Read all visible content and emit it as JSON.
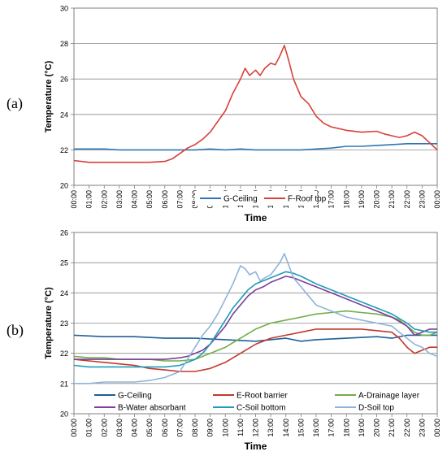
{
  "chart_data": [
    {
      "panel_label": "(a)",
      "type": "line",
      "xlabel": "Time",
      "ylabel": "Temperature (°C)",
      "ylim": [
        20,
        30
      ],
      "yticks": [
        20,
        22,
        24,
        26,
        28,
        30
      ],
      "xticks": [
        "00:00",
        "01:00",
        "02:00",
        "03:00",
        "04:00",
        "05:00",
        "06:00",
        "07:00",
        "08:00",
        "09:00",
        "10:00",
        "11:00",
        "12:00",
        "13:00",
        "14:00",
        "15:00",
        "16:00",
        "17:00",
        "18:00",
        "19:00",
        "20:00",
        "21:00",
        "22:00",
        "23:00",
        "00:00"
      ],
      "xlim": [
        0,
        24
      ],
      "grid": "horizontal",
      "legend_placement": "bottom-center",
      "series": [
        {
          "name": "G-Ceiling",
          "color": "#2e75b6",
          "x": [
            0,
            1,
            2,
            3,
            4,
            5,
            6,
            7,
            8,
            9,
            10,
            11,
            12,
            13,
            14,
            15,
            16,
            17,
            18,
            19,
            20,
            21,
            22,
            23,
            24
          ],
          "y": [
            22.05,
            22.05,
            22.05,
            22.0,
            22.0,
            22.0,
            22.0,
            22.0,
            22.0,
            22.05,
            22.0,
            22.05,
            22.0,
            22.0,
            22.0,
            22.0,
            22.05,
            22.1,
            22.2,
            22.2,
            22.25,
            22.3,
            22.35,
            22.35,
            22.35
          ]
        },
        {
          "name": "F-Roof top",
          "color": "#d9403b",
          "x": [
            0,
            1,
            2,
            3,
            4,
            5,
            6,
            6.5,
            7,
            7.5,
            8,
            8.5,
            9,
            9.5,
            10,
            10.5,
            11,
            11.3,
            11.6,
            12,
            12.3,
            12.6,
            13,
            13.3,
            13.6,
            13.9,
            14.2,
            14.5,
            15,
            15.5,
            16,
            16.5,
            17,
            17.5,
            18,
            19,
            20,
            20.5,
            21,
            21.5,
            22,
            22.5,
            23,
            23.5,
            24
          ],
          "y": [
            21.4,
            21.3,
            21.3,
            21.3,
            21.3,
            21.3,
            21.35,
            21.5,
            21.8,
            22.1,
            22.3,
            22.6,
            23.0,
            23.6,
            24.2,
            25.2,
            26.0,
            26.6,
            26.2,
            26.5,
            26.2,
            26.6,
            26.9,
            26.8,
            27.3,
            27.9,
            27.0,
            26.0,
            25.0,
            24.6,
            23.9,
            23.5,
            23.3,
            23.2,
            23.1,
            23.0,
            23.05,
            22.9,
            22.8,
            22.7,
            22.8,
            23.0,
            22.8,
            22.4,
            22.0
          ]
        }
      ]
    },
    {
      "panel_label": "(b)",
      "type": "line",
      "xlabel": "Time",
      "ylabel": "Temperature (°C)",
      "ylim": [
        20,
        26
      ],
      "yticks": [
        20,
        21,
        22,
        23,
        24,
        25,
        26
      ],
      "xticks": [
        "00:00",
        "01:00",
        "02:00",
        "03:00",
        "04:00",
        "05:00",
        "06:00",
        "07:00",
        "08:00",
        "09:00",
        "10:00",
        "11:00",
        "12:00",
        "13:00",
        "14:00",
        "15:00",
        "16:00",
        "17:00",
        "18:00",
        "19:00",
        "20:00",
        "21:00",
        "22:00",
        "23:00",
        "00:00"
      ],
      "xlim": [
        0,
        24
      ],
      "grid": "horizontal",
      "legend_placement": "bottom",
      "series": [
        {
          "name": "G-Ceiling",
          "color": "#1f5f99",
          "x": [
            0,
            2,
            4,
            6,
            8,
            10,
            12,
            13,
            14,
            15,
            16,
            18,
            20,
            21,
            22,
            23,
            24
          ],
          "y": [
            22.6,
            22.55,
            22.55,
            22.5,
            22.5,
            22.45,
            22.4,
            22.45,
            22.5,
            22.4,
            22.45,
            22.5,
            22.55,
            22.5,
            22.6,
            22.6,
            22.6
          ]
        },
        {
          "name": "E-Root barrier",
          "color": "#c0392b",
          "x": [
            0,
            1,
            2,
            3,
            4,
            5,
            6,
            7,
            8,
            9,
            10,
            11,
            12,
            13,
            14,
            15,
            16,
            17,
            18,
            19,
            20,
            21,
            21.5,
            22,
            22.5,
            23,
            23.5,
            24
          ],
          "y": [
            21.8,
            21.75,
            21.7,
            21.65,
            21.6,
            21.5,
            21.45,
            21.4,
            21.4,
            21.5,
            21.7,
            22.0,
            22.3,
            22.5,
            22.6,
            22.7,
            22.8,
            22.8,
            22.8,
            22.8,
            22.75,
            22.7,
            22.5,
            22.2,
            22.0,
            22.1,
            22.2,
            22.2
          ]
        },
        {
          "name": "A-Drainage layer",
          "color": "#70ad47",
          "x": [
            0,
            1,
            2,
            3,
            4,
            5,
            6,
            7,
            8,
            9,
            10,
            11,
            12,
            13,
            14,
            15,
            16,
            17,
            18,
            19,
            20,
            21,
            21.5,
            22,
            22.5,
            23,
            23.5,
            24
          ],
          "y": [
            21.9,
            21.85,
            21.85,
            21.8,
            21.8,
            21.8,
            21.75,
            21.75,
            21.8,
            22.0,
            22.2,
            22.5,
            22.8,
            23.0,
            23.1,
            23.2,
            23.3,
            23.35,
            23.4,
            23.35,
            23.3,
            23.2,
            23.1,
            22.9,
            22.7,
            22.6,
            22.6,
            22.7
          ]
        },
        {
          "name": "B-Water absorbant",
          "color": "#7e3f98",
          "x": [
            0,
            1,
            2,
            3,
            4,
            5,
            6,
            7,
            7.5,
            8,
            8.5,
            9,
            9.5,
            10,
            10.5,
            11,
            11.5,
            12,
            12.5,
            13,
            13.5,
            14,
            14.5,
            15,
            16,
            17,
            18,
            19,
            20,
            21,
            22,
            22.5,
            23,
            23.5,
            24
          ],
          "y": [
            21.8,
            21.8,
            21.8,
            21.8,
            21.8,
            21.8,
            21.8,
            21.85,
            21.9,
            22.0,
            22.1,
            22.3,
            22.6,
            22.9,
            23.3,
            23.6,
            23.9,
            24.1,
            24.2,
            24.35,
            24.45,
            24.55,
            24.5,
            24.4,
            24.2,
            24.0,
            23.8,
            23.6,
            23.4,
            23.2,
            22.9,
            22.6,
            22.7,
            22.8,
            22.8
          ]
        },
        {
          "name": "C-Soil bottom",
          "color": "#1f9bb8",
          "x": [
            0,
            1,
            2,
            3,
            4,
            5,
            6,
            7,
            7.5,
            8,
            8.5,
            9,
            9.5,
            10,
            10.5,
            11,
            11.5,
            12,
            12.5,
            13,
            13.5,
            14,
            14.5,
            15,
            16,
            17,
            18,
            19,
            20,
            21,
            22,
            22.5,
            23,
            23.5,
            24
          ],
          "y": [
            21.6,
            21.55,
            21.55,
            21.55,
            21.55,
            21.55,
            21.55,
            21.6,
            21.7,
            21.8,
            22.0,
            22.3,
            22.7,
            23.1,
            23.5,
            23.8,
            24.1,
            24.3,
            24.4,
            24.5,
            24.6,
            24.7,
            24.65,
            24.55,
            24.3,
            24.1,
            23.9,
            23.7,
            23.5,
            23.3,
            23.0,
            22.8,
            22.75,
            22.7,
            22.7
          ]
        },
        {
          "name": "D-Soil top",
          "color": "#8fb3d9",
          "x": [
            0,
            1,
            2,
            3,
            4,
            5,
            6,
            6.5,
            7,
            7.5,
            8,
            8.5,
            9,
            9.5,
            10,
            10.5,
            11,
            11.3,
            11.6,
            12,
            12.3,
            12.6,
            13,
            13.3,
            13.6,
            13.9,
            14.2,
            14.5,
            15,
            15.5,
            16,
            17,
            18,
            19,
            20,
            21,
            21.5,
            22,
            22.5,
            23,
            23.5,
            24
          ],
          "y": [
            21.0,
            21.0,
            21.05,
            21.05,
            21.05,
            21.1,
            21.2,
            21.3,
            21.4,
            21.8,
            22.2,
            22.6,
            22.9,
            23.3,
            23.8,
            24.3,
            24.9,
            24.8,
            24.6,
            24.7,
            24.4,
            24.5,
            24.6,
            24.8,
            25.0,
            25.3,
            24.9,
            24.5,
            24.2,
            23.9,
            23.6,
            23.4,
            23.2,
            23.1,
            23.0,
            22.9,
            22.7,
            22.5,
            22.3,
            22.2,
            22.0,
            21.9
          ]
        }
      ]
    }
  ]
}
